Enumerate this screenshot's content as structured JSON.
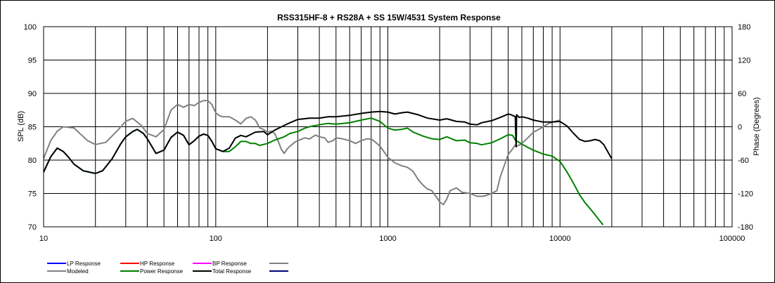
{
  "chart_data": {
    "type": "line",
    "title": "RSS315HF-8 + RS28A + SS 15W/4531  System Response",
    "xlabel": "",
    "ylabel": "SPL (dB)",
    "y2label": "Phase (Degrees)",
    "xscale": "log",
    "xlim": [
      10,
      100000
    ],
    "ylim": [
      70,
      100
    ],
    "y2lim": [
      -180,
      180
    ],
    "grid": true,
    "legend_position": "bottom-left",
    "x_tick_labels": [
      "10",
      "100",
      "1000",
      "10000",
      "100000"
    ],
    "y_ticks": [
      70,
      75,
      80,
      85,
      90,
      95,
      100
    ],
    "y2_ticks": [
      -180,
      -120,
      -60,
      0,
      60,
      120,
      180
    ],
    "legend": [
      {
        "name": "LP Response",
        "color": "#0000ff"
      },
      {
        "name": "HP Response",
        "color": "#ff0000"
      },
      {
        "name": "BP Response",
        "color": "#ff00ff"
      },
      {
        "name": "",
        "color": "#808080"
      },
      {
        "name": "Modeled",
        "color": "#808080"
      },
      {
        "name": "Power Response",
        "color": "#008000"
      },
      {
        "name": "Total Response",
        "color": "#000000"
      },
      {
        "name": "",
        "color": "#000080"
      }
    ],
    "series": [
      {
        "color": "#808080",
        "axis": "y2",
        "x": [
          10,
          11,
          12,
          13,
          15,
          18,
          20,
          23,
          27,
          30,
          33,
          37,
          40,
          45,
          50,
          55,
          60,
          65,
          70,
          75,
          80,
          85,
          90,
          95,
          100,
          105,
          110,
          120,
          130,
          140,
          150,
          160,
          170,
          180,
          190,
          200,
          210,
          220,
          230,
          240,
          250,
          260,
          270,
          290,
          300,
          330,
          350,
          380,
          400,
          430,
          450,
          480,
          500,
          550,
          600,
          650,
          700,
          750,
          800,
          850,
          900,
          950,
          1000,
          1100,
          1200,
          1300,
          1400,
          1500,
          1600,
          1700,
          1800,
          1900,
          2000,
          2100,
          2200,
          2300,
          2500,
          2700,
          3000,
          3300,
          3600,
          4000,
          4300,
          4500,
          5000,
          5300,
          5500,
          5600,
          5800,
          6000,
          6500,
          7000,
          7500,
          8000,
          8500,
          9000,
          9500,
          10000
        ],
        "y": [
          -57,
          -25,
          -8,
          0,
          -2,
          -25,
          -32,
          -28,
          -6,
          10,
          15,
          2,
          -12,
          -18,
          -5,
          30,
          40,
          35,
          40,
          38,
          44,
          47,
          47,
          40,
          25,
          20,
          18,
          18,
          12,
          5,
          15,
          18,
          12,
          -2,
          -5,
          -10,
          -8,
          -12,
          -25,
          -40,
          -48,
          -40,
          -35,
          -27,
          -25,
          -20,
          -22,
          -15,
          -18,
          -20,
          -28,
          -25,
          -20,
          -22,
          -25,
          -30,
          -25,
          -22,
          -22,
          -28,
          -35,
          -45,
          -55,
          -65,
          -70,
          -73,
          -80,
          -95,
          -105,
          -112,
          -115,
          -125,
          -135,
          -140,
          -130,
          -115,
          -110,
          -118,
          -120,
          -125,
          -125,
          -120,
          -115,
          -90,
          -50,
          -40,
          -33,
          -35,
          -33,
          -30,
          -20,
          -10,
          -5,
          0,
          5,
          8,
          10,
          12
        ]
      },
      {
        "name": "Power Response",
        "color": "#008000",
        "x": [
          10,
          11,
          12,
          13,
          14,
          15,
          17,
          20,
          22,
          25,
          28,
          30,
          33,
          35,
          38,
          40,
          45,
          50,
          55,
          60,
          65,
          70,
          75,
          80,
          85,
          90,
          95,
          100,
          110,
          120,
          130,
          140,
          150,
          160,
          170,
          180,
          200,
          220,
          250,
          270,
          300,
          330,
          350,
          400,
          450,
          500,
          550,
          600,
          700,
          800,
          900,
          1000,
          1100,
          1200,
          1300,
          1400,
          1600,
          1800,
          2000,
          2200,
          2500,
          2800,
          3000,
          3300,
          3500,
          4000,
          4500,
          5000,
          5300,
          5500,
          6000,
          6500,
          7000,
          8000,
          9000,
          10000,
          11000,
          12000,
          13000,
          14000,
          15000,
          16000,
          17000,
          17800
        ],
        "y": [
          78.2,
          80.5,
          81.8,
          81.3,
          80.4,
          79.4,
          78.4,
          78.0,
          78.4,
          80.2,
          82.4,
          83.5,
          84.3,
          84.6,
          84.0,
          83.2,
          81.0,
          81.5,
          83.4,
          84.2,
          83.7,
          82.3,
          82.9,
          83.6,
          83.9,
          83.7,
          82.8,
          81.7,
          81.3,
          81.3,
          82.0,
          82.8,
          82.8,
          82.5,
          82.5,
          82.2,
          82.5,
          83.0,
          83.5,
          84.0,
          84.3,
          84.8,
          85.0,
          85.3,
          85.5,
          85.4,
          85.5,
          85.6,
          86.0,
          86.3,
          85.8,
          84.8,
          84.5,
          84.6,
          84.8,
          84.2,
          83.6,
          83.2,
          83.1,
          83.5,
          82.9,
          83.0,
          82.6,
          82.5,
          82.3,
          82.6,
          83.2,
          83.8,
          83.7,
          83.0,
          82.4,
          81.9,
          81.5,
          80.9,
          80.6,
          79.8,
          78.2,
          76.5,
          74.8,
          73.6,
          72.7,
          71.8,
          70.9,
          70.3
        ]
      },
      {
        "name": "Total Response",
        "color": "#000000",
        "x": [
          10,
          11,
          12,
          13,
          14,
          15,
          17,
          20,
          22,
          25,
          28,
          30,
          33,
          35,
          38,
          40,
          45,
          50,
          55,
          60,
          65,
          70,
          75,
          80,
          85,
          90,
          95,
          100,
          110,
          120,
          130,
          140,
          150,
          170,
          190,
          200,
          220,
          250,
          270,
          300,
          350,
          400,
          450,
          500,
          600,
          700,
          800,
          900,
          1000,
          1100,
          1200,
          1300,
          1500,
          1700,
          2000,
          2200,
          2500,
          2800,
          3000,
          3300,
          3500,
          4000,
          4500,
          5000,
          5200,
          5400,
          5500,
          5560,
          5600,
          5800,
          6000,
          6500,
          7000,
          8000,
          9000,
          10000,
          11000,
          12000,
          13000,
          14000,
          15000,
          16000,
          17000,
          18000,
          19000,
          20000
        ],
        "y": [
          78.2,
          80.5,
          81.8,
          81.3,
          80.4,
          79.4,
          78.4,
          78.0,
          78.4,
          80.2,
          82.4,
          83.5,
          84.3,
          84.6,
          84.0,
          83.2,
          81.0,
          81.5,
          83.4,
          84.2,
          83.7,
          82.3,
          82.9,
          83.6,
          83.9,
          83.7,
          82.8,
          81.7,
          81.3,
          81.8,
          83.3,
          83.7,
          83.5,
          84.2,
          84.3,
          83.8,
          84.5,
          85.2,
          85.6,
          86.1,
          86.3,
          86.3,
          86.5,
          86.5,
          86.7,
          87.0,
          87.2,
          87.3,
          87.2,
          86.9,
          87.1,
          87.2,
          86.8,
          86.3,
          86.0,
          86.2,
          85.8,
          85.7,
          85.4,
          85.3,
          85.6,
          85.9,
          86.4,
          86.9,
          86.8,
          86.6,
          86.5,
          82.0,
          86.8,
          86.4,
          86.5,
          86.3,
          86.0,
          85.7,
          85.7,
          85.8,
          85.1,
          84.0,
          83.1,
          82.8,
          82.9,
          83.1,
          82.9,
          82.3,
          81.2,
          80.2
        ]
      }
    ]
  }
}
